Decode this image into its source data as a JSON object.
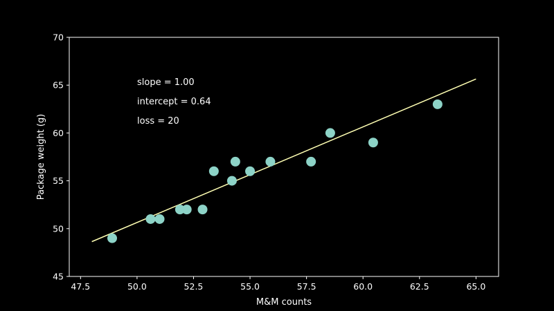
{
  "chart_data": {
    "type": "scatter",
    "xlabel": "M&M counts",
    "ylabel": "Package weight (g)",
    "xlim": [
      47,
      66
    ],
    "ylim": [
      45,
      70
    ],
    "x_ticks": [
      47.5,
      50.0,
      52.5,
      55.0,
      57.5,
      60.0,
      62.5,
      65.0
    ],
    "x_tick_labels": [
      "47.5",
      "50.0",
      "52.5",
      "55.0",
      "57.5",
      "60.0",
      "62.5",
      "65.0"
    ],
    "y_ticks": [
      45,
      50,
      55,
      60,
      65,
      70
    ],
    "y_tick_labels": [
      "45",
      "50",
      "55",
      "60",
      "65",
      "70"
    ],
    "grid": false,
    "points": [
      {
        "x": 48.9,
        "y": 49
      },
      {
        "x": 50.6,
        "y": 51
      },
      {
        "x": 51.0,
        "y": 51
      },
      {
        "x": 51.9,
        "y": 52
      },
      {
        "x": 52.2,
        "y": 52
      },
      {
        "x": 52.9,
        "y": 52
      },
      {
        "x": 53.4,
        "y": 56
      },
      {
        "x": 54.2,
        "y": 55
      },
      {
        "x": 54.35,
        "y": 57
      },
      {
        "x": 55.0,
        "y": 56
      },
      {
        "x": 55.9,
        "y": 57
      },
      {
        "x": 57.7,
        "y": 57
      },
      {
        "x": 58.55,
        "y": 60
      },
      {
        "x": 60.45,
        "y": 59
      },
      {
        "x": 63.3,
        "y": 63
      }
    ],
    "fit_line": {
      "x": [
        48.0,
        65.0
      ],
      "y": [
        48.64,
        65.64
      ]
    },
    "annotations": [
      "slope = 1.00",
      "intercept = 0.64",
      "loss = 20"
    ],
    "colors": {
      "background": "#000000",
      "axes": "#ffffff",
      "points": "#8dd3c7",
      "line": "#ffffb3",
      "text": "#ffffff"
    }
  }
}
